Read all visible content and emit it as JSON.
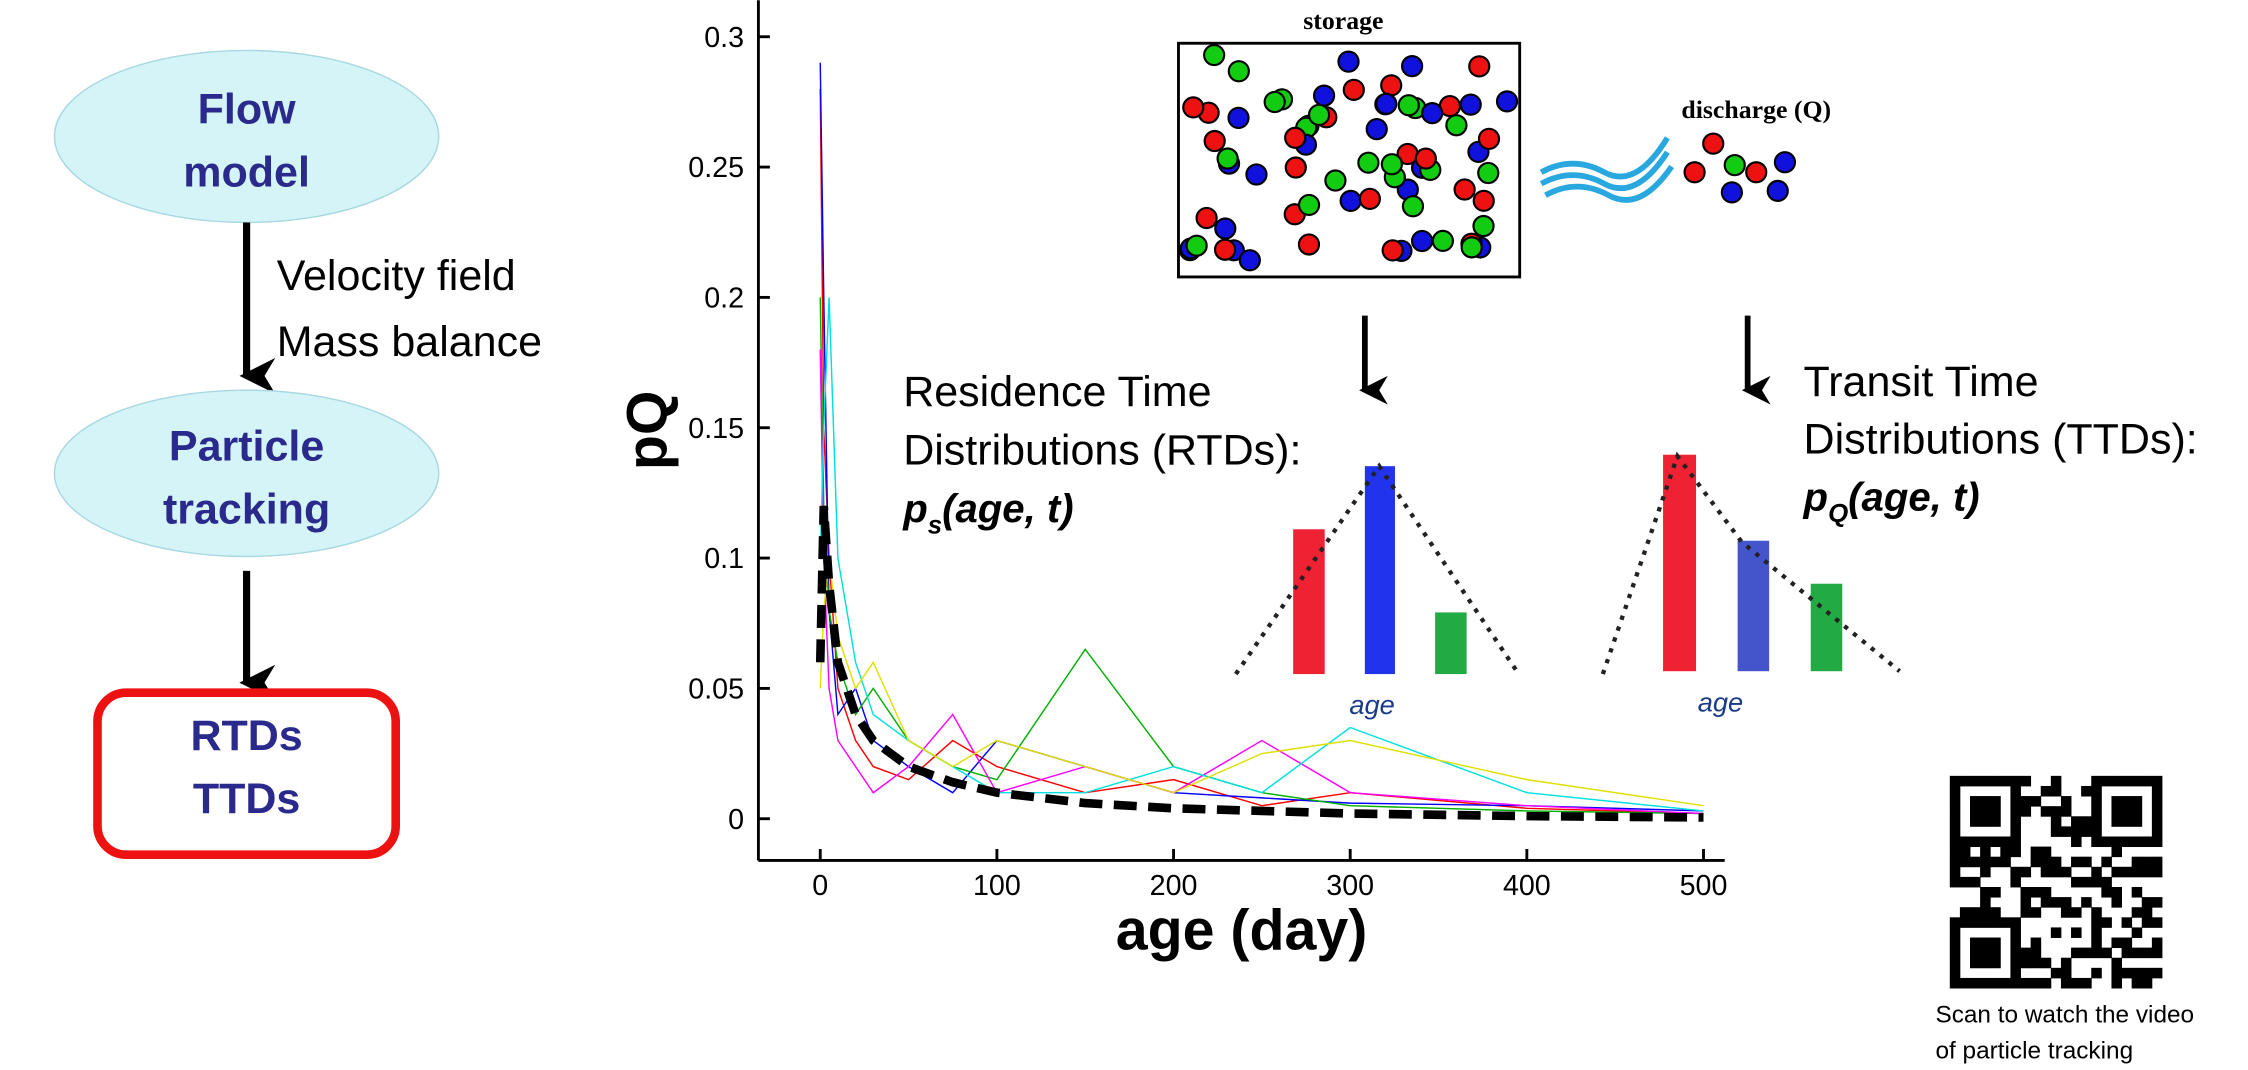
{
  "flowchart": {
    "nodes": [
      {
        "lines": [
          "Flow",
          "model"
        ]
      },
      {
        "lines": [
          "Particle",
          "tracking"
        ]
      },
      {
        "lines": [
          "RTDs",
          "TTDs"
        ]
      }
    ],
    "edge_label": [
      "Velocity field",
      "Mass balance"
    ]
  },
  "illustration": {
    "storage": "storage",
    "discharge": "discharge (Q)",
    "rtd": {
      "lines": [
        "Residence Time",
        "Distributions (RTDs):"
      ],
      "p": "p",
      "sub": "s",
      "args": "(age, t)",
      "axis": "age"
    },
    "ttd": {
      "lines": [
        "Transit Time",
        "Distributions (TTDs):"
      ],
      "p": "p",
      "sub": "Q",
      "args": "(age, t)",
      "axis": "age"
    }
  },
  "qr_caption": [
    "Scan to watch the video",
    "of particle tracking"
  ],
  "chart_data": {
    "type": "line",
    "xlabel": "age (day)",
    "ylabel": "pQ",
    "x": [
      0,
      2,
      5,
      10,
      20,
      30,
      50,
      75,
      100,
      150,
      200,
      250,
      300,
      400,
      500
    ],
    "series": [
      {
        "color": "#ff0000",
        "values": [
          0.28,
          0.15,
          0.1,
          0.05,
          0.03,
          0.02,
          0.015,
          0.03,
          0.02,
          0.01,
          0.015,
          0.005,
          0.01,
          0.004,
          0.002
        ]
      },
      {
        "color": "#0000ff",
        "values": [
          0.29,
          0.2,
          0.08,
          0.04,
          0.05,
          0.03,
          0.02,
          0.01,
          0.03,
          0.02,
          0.01,
          0.008,
          0.006,
          0.005,
          0.003
        ]
      },
      {
        "color": "#00b000",
        "values": [
          0.2,
          0.12,
          0.08,
          0.06,
          0.04,
          0.05,
          0.03,
          0.02,
          0.015,
          0.065,
          0.02,
          0.01,
          0.005,
          0.003,
          0.002
        ]
      },
      {
        "color": "#ff00ff",
        "values": [
          0.18,
          0.1,
          0.05,
          0.03,
          0.02,
          0.01,
          0.02,
          0.04,
          0.01,
          0.02,
          0.01,
          0.03,
          0.01,
          0.005,
          0.002
        ]
      },
      {
        "color": "#00e0e0",
        "values": [
          0.1,
          0.15,
          0.2,
          0.1,
          0.06,
          0.04,
          0.03,
          0.02,
          0.01,
          0.01,
          0.02,
          0.01,
          0.035,
          0.01,
          0.003
        ]
      },
      {
        "color": "#e0e000",
        "values": [
          0.05,
          0.08,
          0.1,
          0.07,
          0.05,
          0.06,
          0.03,
          0.02,
          0.03,
          0.02,
          0.01,
          0.025,
          0.03,
          0.015,
          0.005
        ]
      },
      {
        "color": "#000000",
        "dashed": true,
        "values": [
          0.06,
          0.12,
          0.09,
          0.06,
          0.04,
          0.03,
          0.02,
          0.014,
          0.01,
          0.006,
          0.004,
          0.003,
          0.002,
          0.001,
          0.0005
        ]
      }
    ],
    "xlim": [
      -35,
      512
    ],
    "xticks": [
      0,
      100,
      200,
      300,
      400,
      500
    ],
    "ylim": [
      -0.016,
      0.314
    ],
    "yticks": [
      0,
      0.05,
      0.1,
      0.15,
      0.2,
      0.25,
      0.3
    ]
  }
}
